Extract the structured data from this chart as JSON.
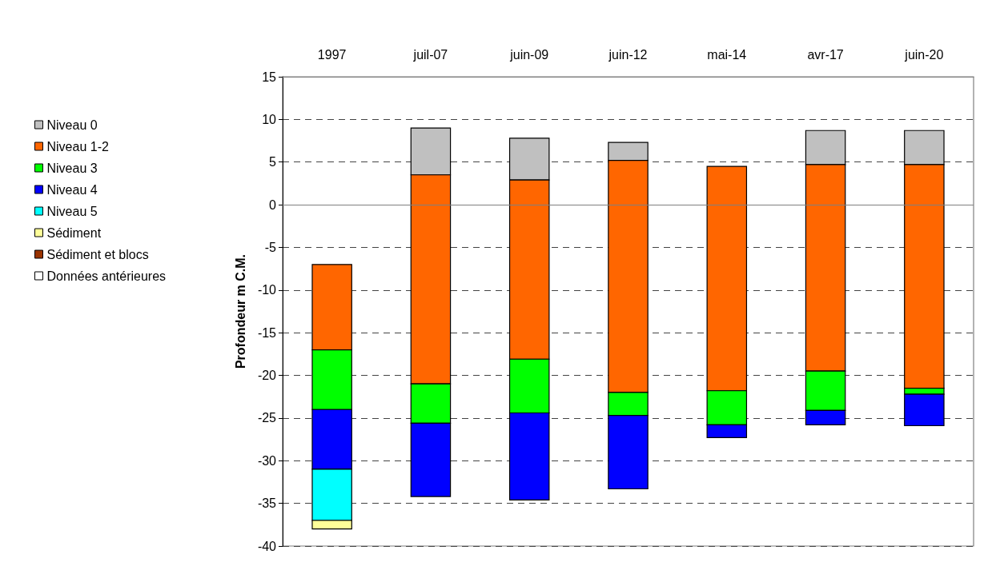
{
  "chart_data": {
    "type": "bar",
    "ylabel": "Profondeur m C.M.",
    "categories": [
      "1997",
      "juil-07",
      "juin-09",
      "juin-12",
      "mai-14",
      "avr-17",
      "juin-20"
    ],
    "series": [
      {
        "name": "Niveau 0",
        "color": "#c0c0c0",
        "base": [
          null,
          3.5,
          2.9,
          5.2,
          null,
          4.7,
          4.7
        ],
        "values": [
          null,
          5.5,
          4.9,
          2.1,
          null,
          4.0,
          4.0
        ]
      },
      {
        "name": "Niveau 1-2",
        "color": "#ff6600",
        "base": [
          -17,
          -21,
          -18.1,
          -22,
          -21.8,
          -19.5,
          -21.5
        ],
        "values": [
          10,
          24.5,
          21,
          27.2,
          26.3,
          24.2,
          26.2
        ]
      },
      {
        "name": "Niveau 3",
        "color": "#00ff00",
        "base": [
          -24,
          -25.6,
          -24.4,
          -24.7,
          -25.8,
          -24.1,
          -22.2
        ],
        "values": [
          7,
          4.6,
          6.3,
          2.7,
          4,
          4.6,
          0.7
        ]
      },
      {
        "name": "Niveau 4",
        "color": "#0000ff",
        "base": [
          -31,
          -34.2,
          -34.6,
          -33.3,
          -27.3,
          -25.8,
          -25.9
        ],
        "values": [
          7,
          8.6,
          10.2,
          8.6,
          1.5,
          1.7,
          3.7
        ]
      },
      {
        "name": "Niveau 5",
        "color": "#00ffff",
        "base": [
          -37,
          null,
          null,
          null,
          null,
          null,
          null
        ],
        "values": [
          6,
          null,
          null,
          null,
          null,
          null,
          null
        ]
      },
      {
        "name": "Sédiment",
        "color": "#ffff99",
        "base": [
          -38,
          null,
          null,
          null,
          null,
          null,
          null
        ],
        "values": [
          1,
          null,
          null,
          null,
          null,
          null,
          null
        ]
      },
      {
        "name": "Sédiment et blocs",
        "color": "#993300",
        "values": [
          null,
          null,
          null,
          null,
          null,
          null,
          null
        ]
      },
      {
        "name": "Données antérieures",
        "color": "#ffffff",
        "values": [
          null,
          null,
          null,
          null,
          null,
          null,
          null
        ]
      }
    ],
    "ylim": [
      -40,
      15
    ],
    "yticks": [
      -40,
      -35,
      -30,
      -25,
      -20,
      -15,
      -10,
      -5,
      0,
      5,
      10,
      15
    ],
    "ref_lines": [
      {
        "axis": "y",
        "value": 0,
        "color": "#808080"
      }
    ],
    "grid": "y",
    "legend": "left"
  }
}
